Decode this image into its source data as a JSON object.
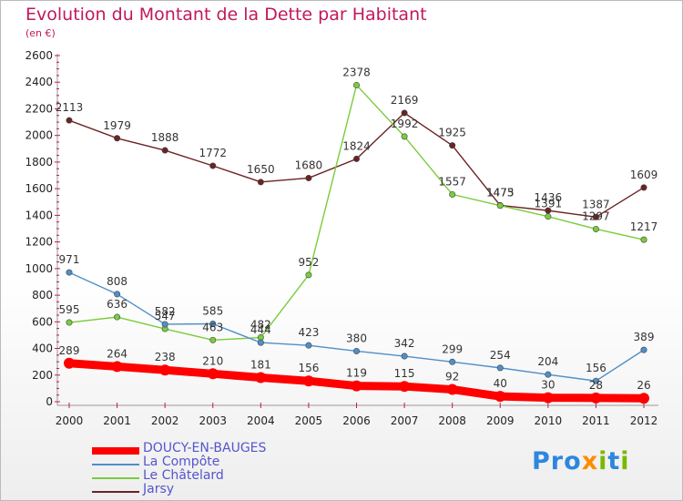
{
  "title": "Evolution du Montant de la Dette par Habitant",
  "subtitle": "(en €)",
  "logo": "Proxiti",
  "chart_data": {
    "type": "line",
    "categories": [
      "2000",
      "2001",
      "2002",
      "2003",
      "2004",
      "2005",
      "2006",
      "2007",
      "2008",
      "2009",
      "2010",
      "2011",
      "2012"
    ],
    "ylim": [
      0,
      2600
    ],
    "yticks": [
      0,
      200,
      400,
      600,
      800,
      1000,
      1200,
      1400,
      1600,
      1800,
      2000,
      2200,
      2400,
      2600
    ],
    "grid": false,
    "legend_position": "bottom-left",
    "series": [
      {
        "name": "DOUCY-EN-BAUGES",
        "color": "#ff0000",
        "values": [
          289,
          264,
          238,
          210,
          181,
          156,
          119,
          115,
          92,
          40,
          30,
          28,
          26
        ]
      },
      {
        "name": "La Compôte",
        "color": "#4f8fc8",
        "values": [
          971,
          808,
          582,
          585,
          444,
          423,
          380,
          342,
          299,
          254,
          204,
          156,
          389
        ]
      },
      {
        "name": "Le Châtelard",
        "color": "#7acc3c",
        "values": [
          595,
          636,
          547,
          463,
          482,
          952,
          2378,
          1992,
          1557,
          1473,
          1391,
          1297,
          1217
        ]
      },
      {
        "name": "Jarsy",
        "color": "#6b2323",
        "values": [
          2113,
          1979,
          1888,
          1772,
          1650,
          1680,
          1824,
          2169,
          1925,
          1475,
          1436,
          1387,
          1609
        ]
      }
    ]
  }
}
